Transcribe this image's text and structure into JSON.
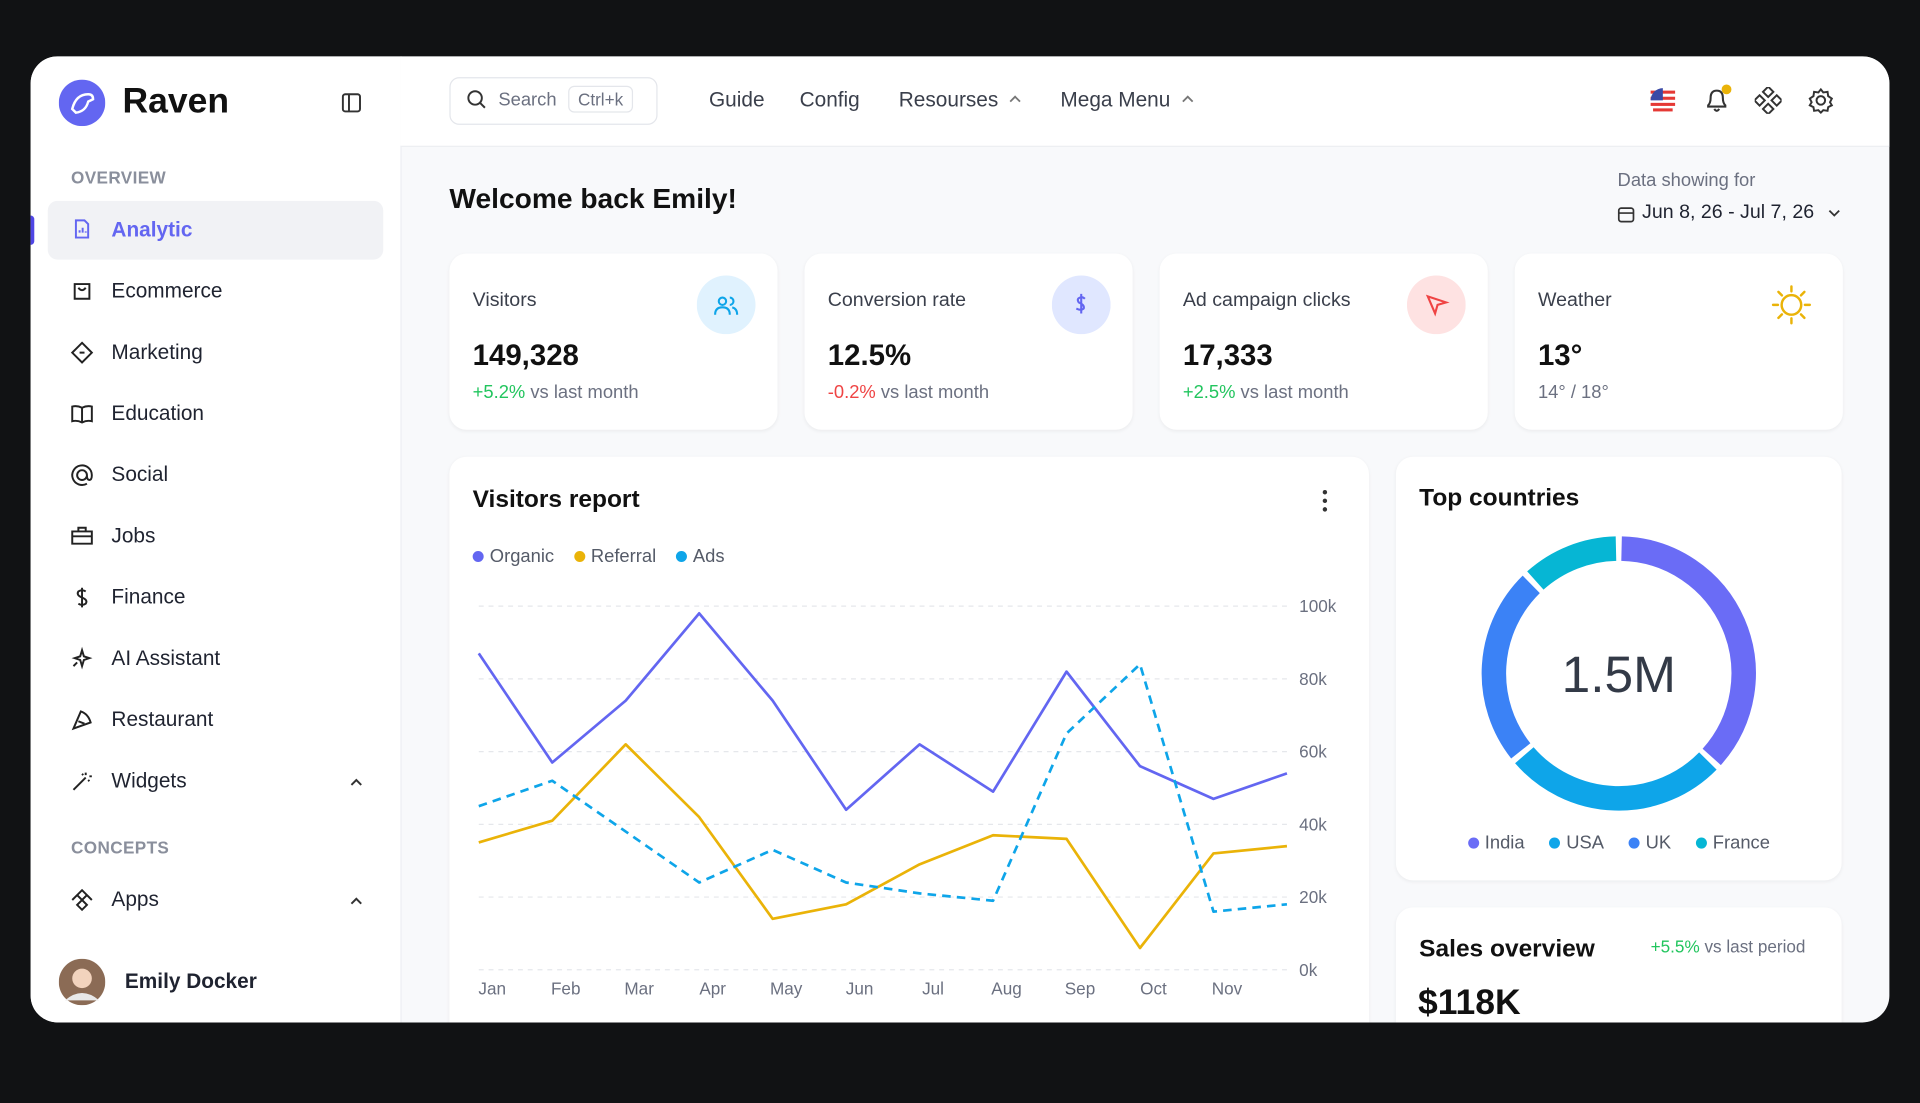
{
  "brand": "Raven",
  "sidebar": {
    "sections": [
      {
        "title": "OVERVIEW",
        "items": [
          "Analytic",
          "Ecommerce",
          "Marketing",
          "Education",
          "Social",
          "Jobs",
          "Finance",
          "AI Assistant",
          "Restaurant",
          "Widgets"
        ]
      },
      {
        "title": "CONCEPTS",
        "items": [
          "Apps"
        ]
      }
    ],
    "user": "Emily Docker"
  },
  "topbar": {
    "search": "Search",
    "shortcut": "Ctrl+k",
    "nav": [
      "Guide",
      "Config",
      "Resourses",
      "Mega Menu"
    ]
  },
  "welcome": "Welcome back Emily!",
  "date_range": {
    "label": "Data showing for",
    "value": "Jun 8, 26 - Jul 7, 26"
  },
  "stats": [
    {
      "title": "Visitors",
      "value": "149,328",
      "change": "+5.2%",
      "note": "vs last month"
    },
    {
      "title": "Conversion rate",
      "value": "12.5%",
      "change": "-0.2%",
      "note": "vs last month"
    },
    {
      "title": "Ad campaign clicks",
      "value": "17,333",
      "change": "+2.5%",
      "note": "vs last month"
    },
    {
      "title": "Weather",
      "value": "13°",
      "note": "14° / 18°"
    }
  ],
  "chart_data": [
    {
      "type": "line",
      "title": "Visitors report",
      "categories": [
        "Jan",
        "Feb",
        "Mar",
        "Apr",
        "May",
        "Jun",
        "Jul",
        "Aug",
        "Sep",
        "Oct",
        "Nov",
        null
      ],
      "series": [
        {
          "name": "Organic",
          "color": "#6366f1",
          "values": [
            87000,
            57000,
            74000,
            98000,
            74000,
            44000,
            62000,
            49000,
            82000,
            56000,
            47000,
            54000
          ]
        },
        {
          "name": "Referral",
          "color": "#eab308",
          "values": [
            35000,
            41000,
            62000,
            42000,
            14000,
            18000,
            29000,
            37000,
            36000,
            6000,
            32000,
            34000
          ]
        },
        {
          "name": "Ads",
          "color": "#0ea5e9",
          "dashed": true,
          "values": [
            45000,
            52000,
            38000,
            24000,
            33000,
            24000,
            21000,
            19000,
            65000,
            84000,
            16000,
            18000
          ]
        }
      ],
      "ylim": [
        0,
        100000
      ],
      "yticks": [
        {
          "value": 0,
          "label": "0k"
        },
        {
          "value": 20000,
          "label": "20k"
        },
        {
          "value": 40000,
          "label": "40k"
        },
        {
          "value": 60000,
          "label": "60k"
        },
        {
          "value": 80000,
          "label": "80k"
        },
        {
          "value": 100000,
          "label": "100k"
        }
      ],
      "grid": true,
      "legend": "top-left"
    },
    {
      "type": "pie",
      "donut": true,
      "title": "Top countries",
      "center_label": "1.5M",
      "categories": [
        "India",
        "USA",
        "UK",
        "France"
      ],
      "values": [
        37,
        27,
        24,
        12
      ],
      "colors": [
        "#6a6cf6",
        "#0ea5e9",
        "#3b82f6",
        "#06b6d4"
      ]
    }
  ],
  "sales": {
    "title": "Sales overview",
    "change": "+5.5%",
    "note": "vs last period",
    "value": "$118K"
  }
}
